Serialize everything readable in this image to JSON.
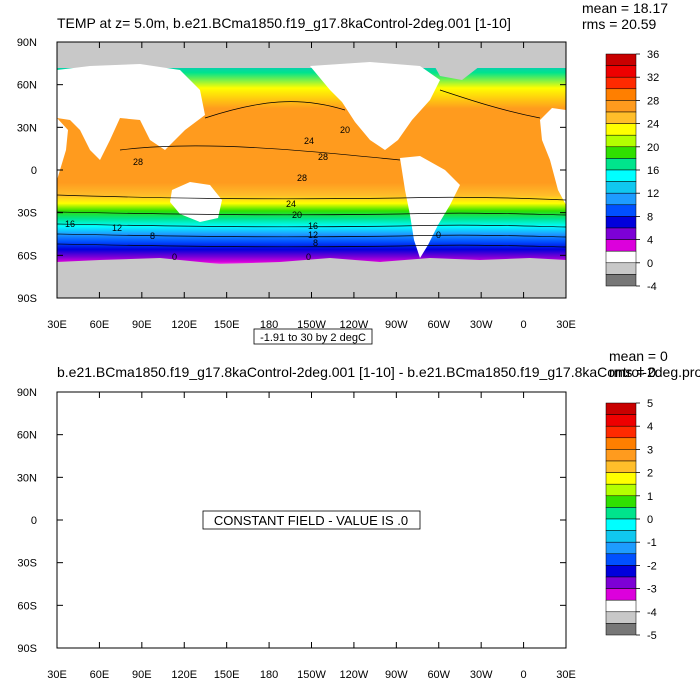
{
  "chart_data": [
    {
      "type": "heatmap",
      "title": "TEMP at z=   5.0m, b.e21.BCma1850.f19_g17.8kaControl-2deg.001 [1-10]",
      "stats": {
        "mean": "mean = 18.17",
        "rms": "rms = 20.59"
      },
      "x_ticks": [
        "30E",
        "60E",
        "90E",
        "120E",
        "150E",
        "180",
        "150W",
        "120W",
        "90W",
        "60W",
        "30W",
        "0",
        "30E"
      ],
      "y_ticks": [
        "90N",
        "60N",
        "30N",
        "0",
        "30S",
        "60S",
        "90S"
      ],
      "contour_note": "-1.91 to 30 by 2 degC",
      "contour_labels": [
        "28",
        "24",
        "20",
        "28",
        "28",
        "24",
        "20",
        "16",
        "12",
        "8",
        "16",
        "12",
        "8",
        "0",
        "0",
        "0"
      ],
      "colorbar": {
        "labels": [
          "36",
          "32",
          "28",
          "24",
          "20",
          "16",
          "12",
          "8",
          "4",
          "0",
          "-4"
        ],
        "colors": [
          "#c80000",
          "#ee0000",
          "#ff2a00",
          "#ff7f00",
          "#ff9b1e",
          "#ffbe2a",
          "#ffff00",
          "#b4ff00",
          "#30e000",
          "#00e48c",
          "#00ffff",
          "#10c8f0",
          "#1e9cff",
          "#0050ff",
          "#0000dc",
          "#7d00d6",
          "#dc00dc",
          "#ffffff",
          "#c8c8c8",
          "#777777"
        ]
      }
    },
    {
      "type": "heatmap",
      "title": "b.e21.BCma1850.f19_g17.8kaControl-2deg.001 [1-10] - b.e21.BCma1850.f19_g17.8kaControl-2deg.pro",
      "stats": {
        "mean": "mean = 0",
        "rms": "rms = 0"
      },
      "x_ticks": [
        "30E",
        "60E",
        "90E",
        "120E",
        "150E",
        "180",
        "150W",
        "120W",
        "90W",
        "60W",
        "30W",
        "0",
        "30E"
      ],
      "y_ticks": [
        "90N",
        "60N",
        "30N",
        "0",
        "30S",
        "60S",
        "90S"
      ],
      "annotation": "CONSTANT FIELD - VALUE IS .0",
      "colorbar": {
        "labels": [
          "5",
          "4",
          "3",
          "2",
          "1",
          "0",
          "-1",
          "-2",
          "-3",
          "-4",
          "-5"
        ],
        "colors": [
          "#c80000",
          "#ee0000",
          "#ff2a00",
          "#ff7f00",
          "#ff9b1e",
          "#ffbe2a",
          "#ffff00",
          "#b4ff00",
          "#30e000",
          "#00e48c",
          "#00ffff",
          "#10c8f0",
          "#1e9cff",
          "#0050ff",
          "#0000dc",
          "#7d00d6",
          "#dc00dc",
          "#ffffff",
          "#c8c8c8",
          "#777777"
        ]
      }
    }
  ]
}
